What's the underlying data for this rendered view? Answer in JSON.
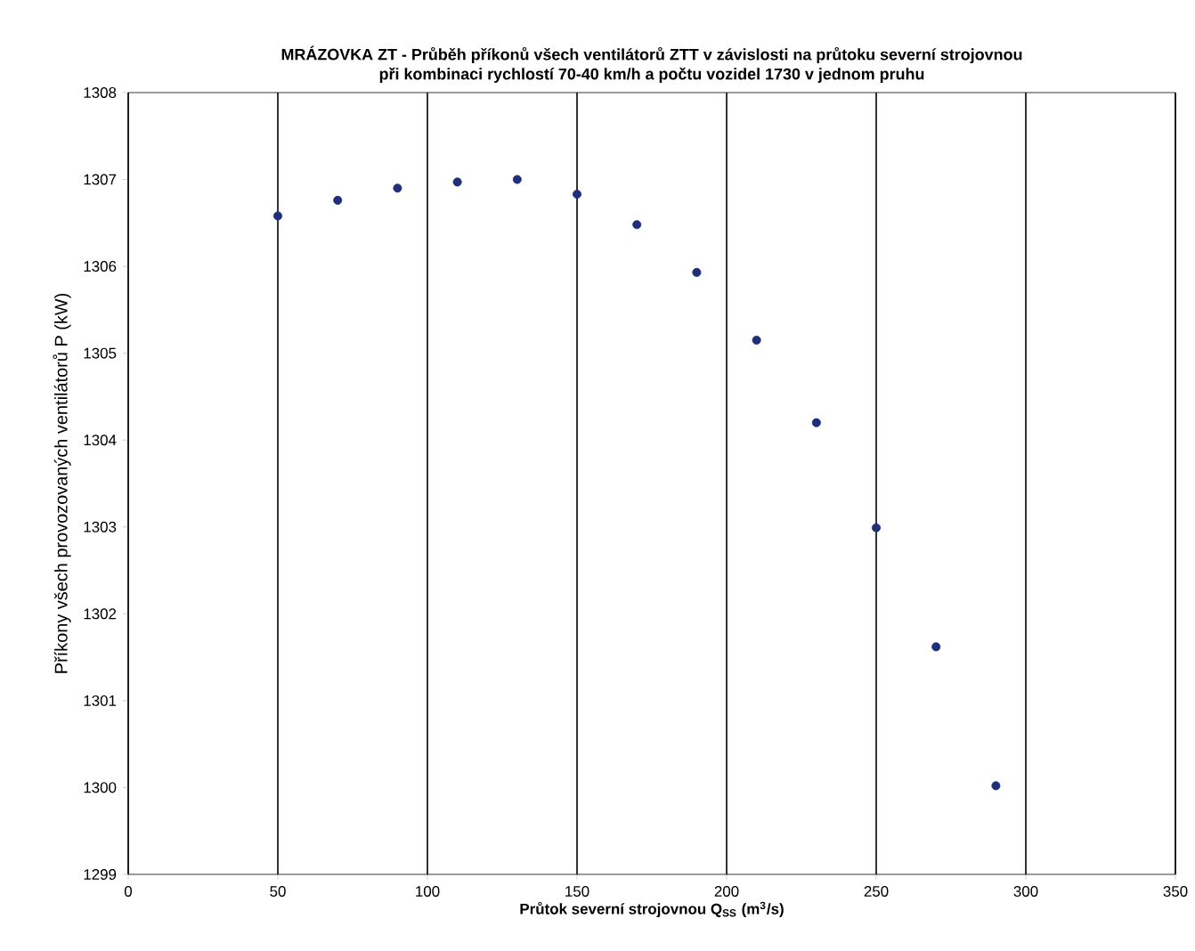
{
  "chart_data": {
    "type": "scatter",
    "title": "MRÁZOVKA ZT - Průběh příkonů všech ventilátorů ZTT v závislosti na průtoku severní strojovnou",
    "subtitle": "při kombinaci rychlostí 70-40 km/h a počtu vozidel 1730 v jednom pruhu",
    "xlabel": "Průtok severní strojovnou Q$_{SS}$ (m$^{3}$/s)",
    "ylabel": "Příkony všech provozovaných ventilátorů P (kW)",
    "x": [
      50,
      70,
      90,
      110,
      130,
      150,
      170,
      190,
      210,
      230,
      250,
      270,
      290
    ],
    "series": [
      {
        "color": "#1f2f7a",
        "values": [
          1306.58,
          1306.76,
          1306.9,
          1306.97,
          1307.0,
          1306.83,
          1306.48,
          1305.93,
          1305.15,
          1304.2,
          1302.99,
          1301.62,
          1300.02
        ]
      }
    ],
    "xlim": [
      0,
      350
    ],
    "xticks": [
      0,
      50,
      100,
      150,
      200,
      250,
      300,
      350
    ],
    "ylim": [
      1299,
      1308
    ],
    "yticks": [
      1299,
      1300,
      1301,
      1302,
      1303,
      1304,
      1305,
      1306,
      1307,
      1308
    ],
    "grid": "x"
  }
}
